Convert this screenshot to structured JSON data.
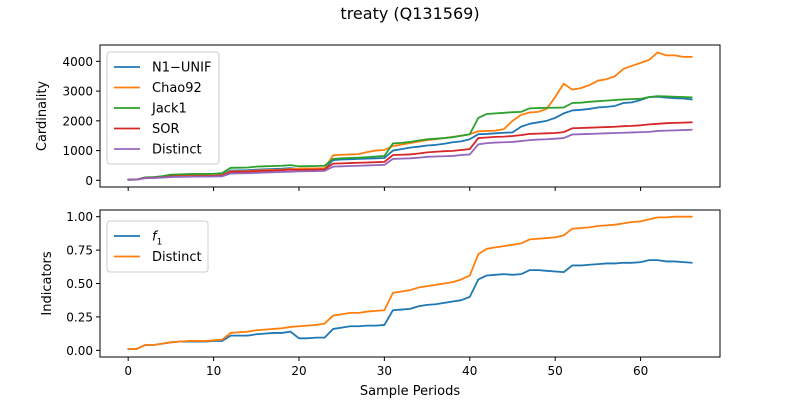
{
  "title": "treaty (Q131569)",
  "chart_data": [
    {
      "type": "line",
      "ylabel": "Cardinality",
      "xlabel": "",
      "xlim": [
        -3.3,
        69.3
      ],
      "ylim": [
        -225,
        4550
      ],
      "x_ticks": [
        0,
        10,
        20,
        30,
        40,
        50,
        60
      ],
      "x_tick_labels": [],
      "y_ticks": [
        0,
        1000,
        2000,
        3000,
        4000
      ],
      "y_tick_labels": [
        "0",
        "1000",
        "2000",
        "3000",
        "4000"
      ],
      "legend_position": "top-left",
      "x": [
        0,
        1,
        2,
        3,
        4,
        5,
        6,
        7,
        8,
        9,
        10,
        11,
        12,
        13,
        14,
        15,
        16,
        17,
        18,
        19,
        20,
        21,
        22,
        23,
        24,
        25,
        26,
        27,
        28,
        29,
        30,
        31,
        32,
        33,
        34,
        35,
        36,
        37,
        38,
        39,
        40,
        41,
        42,
        43,
        44,
        45,
        46,
        47,
        48,
        49,
        50,
        51,
        52,
        53,
        54,
        55,
        56,
        57,
        58,
        59,
        60,
        61,
        62,
        63,
        64,
        65,
        66
      ],
      "series": [
        {
          "name": "N1−UNIF",
          "color": "#1f77b4",
          "values": [
            20,
            25,
            100,
            105,
            130,
            160,
            170,
            175,
            180,
            180,
            185,
            190,
            330,
            335,
            340,
            360,
            370,
            380,
            390,
            410,
            380,
            385,
            390,
            400,
            680,
            700,
            710,
            720,
            730,
            740,
            750,
            1000,
            1050,
            1100,
            1130,
            1170,
            1190,
            1230,
            1280,
            1310,
            1380,
            1550,
            1560,
            1580,
            1600,
            1610,
            1800,
            1900,
            1950,
            2000,
            2100,
            2250,
            2350,
            2370,
            2400,
            2450,
            2470,
            2500,
            2600,
            2620,
            2700,
            2800,
            2810,
            2780,
            2760,
            2750,
            2720
          ]
        },
        {
          "name": "Chao92",
          "color": "#ff7f0e",
          "values": [
            20,
            25,
            90,
            95,
            110,
            150,
            155,
            160,
            165,
            165,
            170,
            175,
            300,
            305,
            310,
            330,
            340,
            350,
            360,
            380,
            390,
            395,
            400,
            410,
            840,
            860,
            870,
            880,
            950,
            1000,
            1020,
            1150,
            1200,
            1250,
            1300,
            1350,
            1380,
            1420,
            1460,
            1500,
            1550,
            1650,
            1660,
            1670,
            1720,
            2000,
            2200,
            2280,
            2300,
            2400,
            2800,
            3250,
            3050,
            3100,
            3200,
            3350,
            3400,
            3500,
            3750,
            3850,
            3950,
            4050,
            4300,
            4200,
            4200,
            4150,
            4150
          ]
        },
        {
          "name": "Jack1",
          "color": "#2ca02c",
          "values": [
            20,
            25,
            100,
            105,
            140,
            190,
            200,
            210,
            215,
            215,
            220,
            240,
            420,
            425,
            430,
            460,
            470,
            480,
            490,
            510,
            470,
            475,
            480,
            490,
            720,
            740,
            750,
            760,
            780,
            800,
            820,
            1240,
            1260,
            1290,
            1340,
            1380,
            1400,
            1420,
            1450,
            1500,
            1550,
            2100,
            2230,
            2250,
            2270,
            2290,
            2300,
            2420,
            2430,
            2440,
            2440,
            2450,
            2600,
            2610,
            2640,
            2660,
            2680,
            2700,
            2720,
            2730,
            2740,
            2800,
            2830,
            2820,
            2810,
            2800,
            2790
          ]
        },
        {
          "name": "SOR",
          "color": "#d62728",
          "values": [
            20,
            25,
            80,
            85,
            100,
            130,
            135,
            140,
            145,
            145,
            150,
            160,
            280,
            285,
            290,
            310,
            320,
            330,
            340,
            360,
            350,
            355,
            360,
            370,
            560,
            570,
            580,
            590,
            600,
            610,
            620,
            850,
            860,
            870,
            900,
            940,
            960,
            980,
            990,
            1020,
            1050,
            1420,
            1440,
            1460,
            1470,
            1490,
            1520,
            1560,
            1570,
            1580,
            1590,
            1620,
            1750,
            1760,
            1770,
            1780,
            1790,
            1800,
            1820,
            1830,
            1850,
            1880,
            1900,
            1920,
            1930,
            1940,
            1950
          ]
        },
        {
          "name": "Distinct",
          "color": "#9467bd",
          "values": [
            20,
            25,
            70,
            75,
            90,
            110,
            115,
            120,
            125,
            125,
            130,
            135,
            230,
            235,
            240,
            250,
            260,
            270,
            280,
            290,
            300,
            305,
            310,
            320,
            460,
            470,
            480,
            490,
            500,
            510,
            520,
            720,
            730,
            740,
            760,
            790,
            800,
            810,
            820,
            850,
            870,
            1210,
            1250,
            1270,
            1280,
            1290,
            1320,
            1350,
            1370,
            1380,
            1400,
            1420,
            1540,
            1550,
            1560,
            1570,
            1580,
            1590,
            1600,
            1610,
            1620,
            1630,
            1660,
            1670,
            1680,
            1690,
            1700
          ]
        }
      ]
    },
    {
      "type": "line",
      "ylabel": "Indicators",
      "xlabel": "Sample Periods",
      "xlim": [
        -3.3,
        69.3
      ],
      "ylim": [
        -0.05,
        1.05
      ],
      "x_ticks": [
        0,
        10,
        20,
        30,
        40,
        50,
        60
      ],
      "x_tick_labels": [
        "0",
        "10",
        "20",
        "30",
        "40",
        "50",
        "60"
      ],
      "y_ticks": [
        0,
        0.25,
        0.5,
        0.75,
        1.0
      ],
      "y_tick_labels": [
        "0.00",
        "0.25",
        "0.50",
        "0.75",
        "1.00"
      ],
      "legend_position": "top-left",
      "x": [
        0,
        1,
        2,
        3,
        4,
        5,
        6,
        7,
        8,
        9,
        10,
        11,
        12,
        13,
        14,
        15,
        16,
        17,
        18,
        19,
        20,
        21,
        22,
        23,
        24,
        25,
        26,
        27,
        28,
        29,
        30,
        31,
        32,
        33,
        34,
        35,
        36,
        37,
        38,
        39,
        40,
        41,
        42,
        43,
        44,
        45,
        46,
        47,
        48,
        49,
        50,
        51,
        52,
        53,
        54,
        55,
        56,
        57,
        58,
        59,
        60,
        61,
        62,
        63,
        64,
        65,
        66
      ],
      "series": [
        {
          "name": "f",
          "name_subscript": "1",
          "color": "#1f77b4",
          "values": [
            0.01,
            0.01,
            0.04,
            0.04,
            0.05,
            0.06,
            0.065,
            0.065,
            0.065,
            0.065,
            0.07,
            0.07,
            0.11,
            0.11,
            0.11,
            0.12,
            0.125,
            0.13,
            0.13,
            0.14,
            0.09,
            0.09,
            0.095,
            0.095,
            0.16,
            0.17,
            0.18,
            0.18,
            0.185,
            0.185,
            0.19,
            0.3,
            0.305,
            0.31,
            0.33,
            0.34,
            0.345,
            0.355,
            0.365,
            0.375,
            0.4,
            0.53,
            0.56,
            0.565,
            0.57,
            0.565,
            0.57,
            0.6,
            0.6,
            0.595,
            0.59,
            0.585,
            0.635,
            0.635,
            0.64,
            0.645,
            0.65,
            0.65,
            0.655,
            0.655,
            0.66,
            0.675,
            0.675,
            0.665,
            0.665,
            0.66,
            0.655
          ]
        },
        {
          "name": "Distinct",
          "name_subscript": "",
          "color": "#ff7f0e",
          "values": [
            0.01,
            0.01,
            0.04,
            0.04,
            0.05,
            0.06,
            0.065,
            0.07,
            0.07,
            0.07,
            0.075,
            0.08,
            0.13,
            0.135,
            0.14,
            0.15,
            0.155,
            0.16,
            0.165,
            0.175,
            0.18,
            0.185,
            0.19,
            0.2,
            0.26,
            0.27,
            0.28,
            0.28,
            0.29,
            0.295,
            0.3,
            0.43,
            0.44,
            0.45,
            0.47,
            0.48,
            0.49,
            0.5,
            0.51,
            0.53,
            0.56,
            0.72,
            0.76,
            0.77,
            0.78,
            0.79,
            0.8,
            0.83,
            0.835,
            0.84,
            0.845,
            0.86,
            0.91,
            0.915,
            0.92,
            0.93,
            0.935,
            0.94,
            0.95,
            0.96,
            0.965,
            0.98,
            0.995,
            0.995,
            1.0,
            1.0,
            1.0
          ]
        }
      ]
    }
  ]
}
